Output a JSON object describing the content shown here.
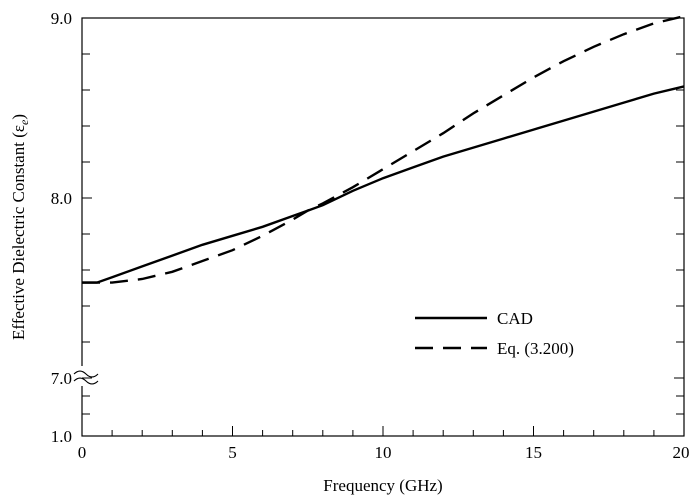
{
  "chart_data": {
    "type": "line",
    "xlabel": "Frequency (GHz)",
    "ylabel": "Effective Dielectric Constant (ε",
    "ylabel_sub": "e",
    "ylabel_close": ")",
    "xlim": [
      0,
      20
    ],
    "ylim_upper": [
      7.0,
      9.0
    ],
    "ylim_lower": [
      0,
      1.0
    ],
    "axis_break": "between 1.0 and 7.0",
    "x_ticks": [
      "0",
      "5",
      "10",
      "15",
      "20"
    ],
    "y_ticks": [
      "1.0",
      "7.0",
      "8.0",
      "9.0"
    ],
    "grid": false,
    "legend_position": "lower-right",
    "series": [
      {
        "name": "CAD",
        "style": "solid",
        "x": [
          0,
          0.5,
          1,
          2,
          3,
          4,
          5,
          6,
          7,
          7.5,
          8,
          9,
          10,
          11,
          12,
          13,
          14,
          15,
          16,
          17,
          18,
          19,
          20
        ],
        "y": [
          7.53,
          7.53,
          7.56,
          7.62,
          7.68,
          7.74,
          7.79,
          7.84,
          7.9,
          7.93,
          7.96,
          8.04,
          8.11,
          8.17,
          8.23,
          8.28,
          8.33,
          8.38,
          8.43,
          8.48,
          8.53,
          8.58,
          8.62
        ]
      },
      {
        "name": "Eq. (3.200)",
        "style": "dashed",
        "x": [
          0,
          0.5,
          1,
          2,
          3,
          4,
          5,
          6,
          7,
          7.5,
          8,
          9,
          10,
          11,
          12,
          13,
          14,
          15,
          16,
          17,
          18,
          19,
          20
        ],
        "y": [
          7.53,
          7.53,
          7.53,
          7.55,
          7.59,
          7.65,
          7.71,
          7.79,
          7.88,
          7.93,
          7.97,
          8.06,
          8.16,
          8.26,
          8.36,
          8.47,
          8.57,
          8.67,
          8.76,
          8.84,
          8.91,
          8.97,
          9.01
        ]
      }
    ]
  }
}
